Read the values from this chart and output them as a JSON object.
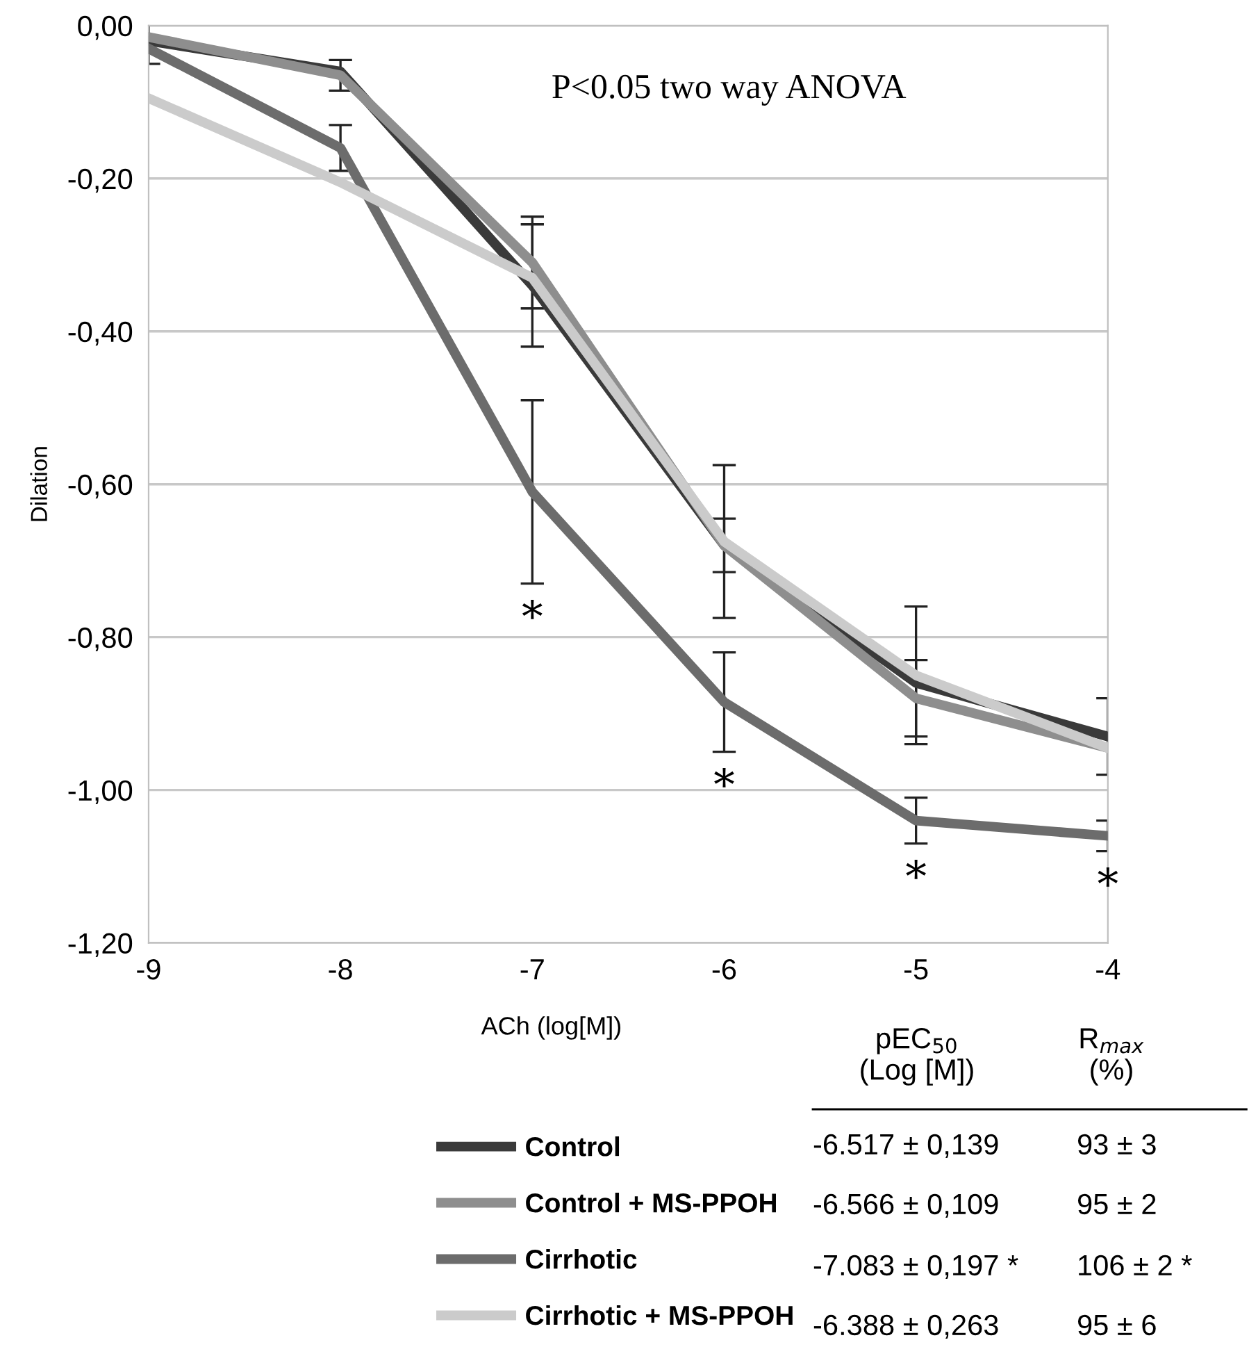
{
  "chart_data": {
    "type": "line",
    "xlabel": "ACh (log[M])",
    "ylabel": "Dilation",
    "x": [
      -9,
      -8,
      -7,
      -6,
      -5,
      -4
    ],
    "series": [
      {
        "name": "Control",
        "color": "#3a3a3a",
        "values": [
          -0.02,
          -0.06,
          -0.34,
          -0.68,
          -0.86,
          -0.93
        ],
        "errors": [
          0.03,
          null,
          0.08,
          0.035,
          null,
          0.05
        ]
      },
      {
        "name": "Control + MS-PPOH",
        "color": "#8e8e8e",
        "values": [
          -0.015,
          -0.065,
          -0.31,
          -0.68,
          -0.88,
          -0.945
        ],
        "errors": [
          null,
          0.02,
          0.06,
          null,
          0.05,
          null
        ]
      },
      {
        "name": "Cirrhotic",
        "color": "#6c6c6c",
        "values": [
          -0.03,
          -0.16,
          -0.61,
          -0.885,
          -1.04,
          -1.06
        ],
        "errors": [
          null,
          0.03,
          0.12,
          0.065,
          0.03,
          0.02
        ]
      },
      {
        "name": "Cirrhotic + MS-PPOH",
        "color": "#cbcbcb",
        "values": [
          -0.095,
          -0.205,
          -0.33,
          -0.675,
          -0.85,
          -0.945
        ],
        "errors": [
          null,
          null,
          null,
          0.1,
          0.09,
          null
        ]
      }
    ],
    "xlim": [
      -9,
      -4
    ],
    "xticks": [
      -9,
      -8,
      -7,
      -6,
      -5,
      -4
    ],
    "ylim": [
      -1.2,
      0
    ],
    "yticks": [
      {
        "value": -1.2,
        "label": "-1,20"
      },
      {
        "value": -1.0,
        "label": "-1,00"
      },
      {
        "value": -0.8,
        "label": "-0,80"
      },
      {
        "value": -0.6,
        "label": "-0,60"
      },
      {
        "value": -0.4,
        "label": "-0,40"
      },
      {
        "value": -0.2,
        "label": "-0,20"
      },
      {
        "value": 0,
        "label": "0,00"
      }
    ],
    "grid": "y",
    "legend": "bottom",
    "marker": "none",
    "line_style": "solid",
    "annotations": [
      {
        "text": "*",
        "x": -7,
        "y": -0.61
      },
      {
        "text": "*",
        "x": -6,
        "y": -0.885
      },
      {
        "text": "*",
        "x": -5,
        "y": -1.04
      },
      {
        "text": "*",
        "x": -4,
        "y": -1.06
      },
      "P<0.05 two way ANOVA",
      "pEC$_{50}$\n(Log [M])",
      "R$_{max}$\n(%)",
      "-6.517 ± 0,139",
      "93 ± 3",
      "-6.566 ± 0,109",
      "95 ± 2",
      "-7.083 ± 0,197 *",
      "106 ± 2 *",
      "-6.388 ± 0,263",
      "95 ± 6"
    ]
  }
}
